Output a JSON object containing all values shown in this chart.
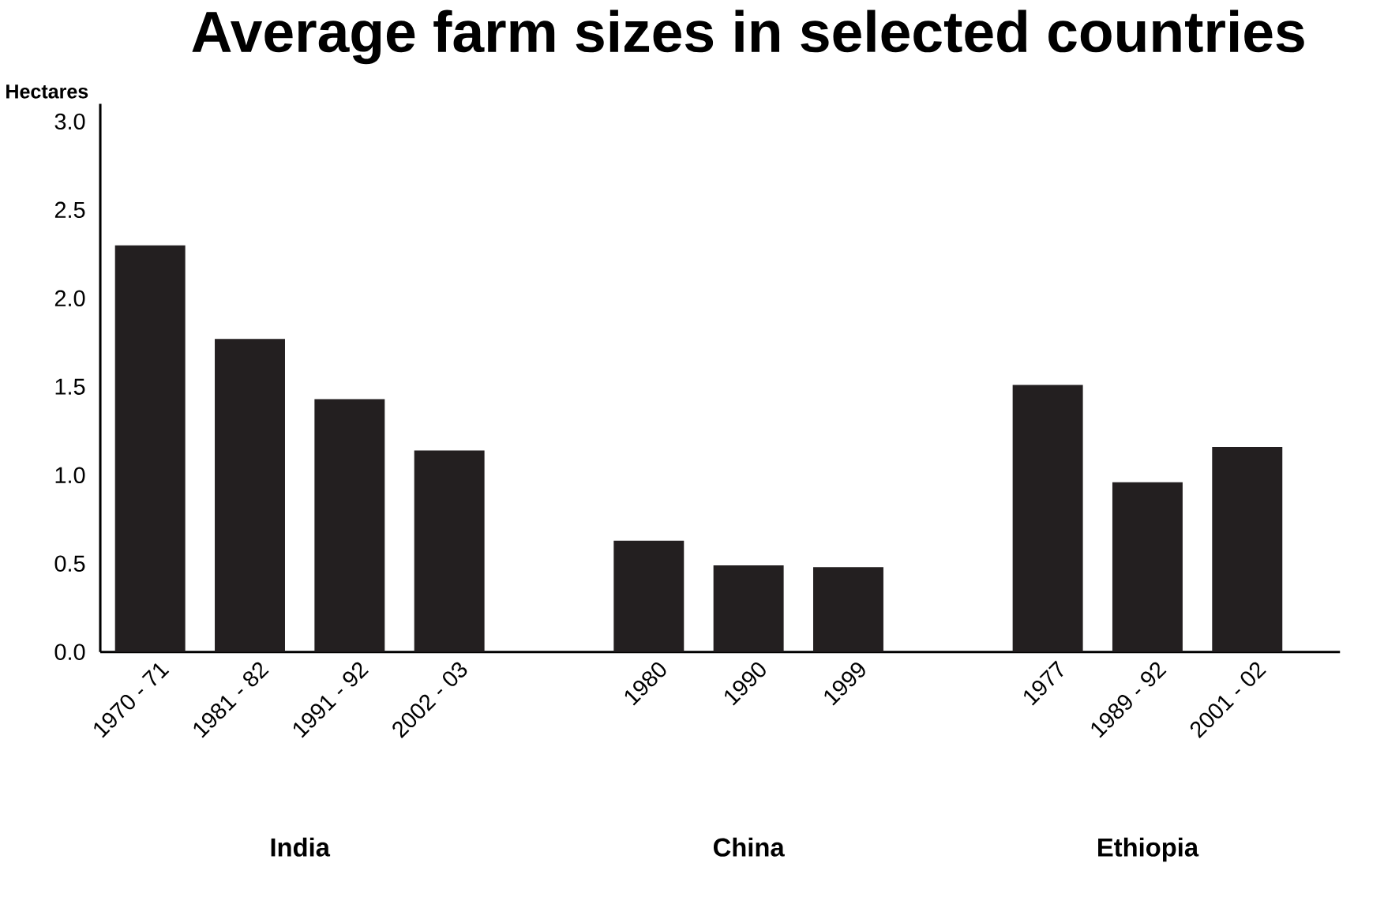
{
  "chart_data": {
    "type": "bar",
    "title": "Average farm sizes in selected countries",
    "ylabel": "Hectares",
    "categories": [
      "1970 - 71",
      "1981 - 82",
      "1991 - 92",
      "2002 - 03",
      null,
      "1980",
      "1990",
      "1999",
      null,
      "1977",
      "1989 - 92",
      "2001 - 02"
    ],
    "values": [
      2.3,
      1.77,
      1.43,
      1.14,
      null,
      0.63,
      0.49,
      0.48,
      null,
      1.51,
      0.96,
      1.16
    ],
    "color": "#231f20",
    "ylim": [
      0,
      3.1
    ],
    "yticks": [
      {
        "value": 0,
        "label": "0.0"
      },
      {
        "value": 0.5,
        "label": "0.5"
      },
      {
        "value": 1,
        "label": "1.0"
      },
      {
        "value": 1.5,
        "label": "1.5"
      },
      {
        "value": 2,
        "label": "2.0"
      },
      {
        "value": 2.5,
        "label": "2.5"
      },
      {
        "value": 3,
        "label": "3.0"
      }
    ],
    "annotations": [
      "India",
      "China",
      "Ethiopia"
    ],
    "grid": false
  }
}
